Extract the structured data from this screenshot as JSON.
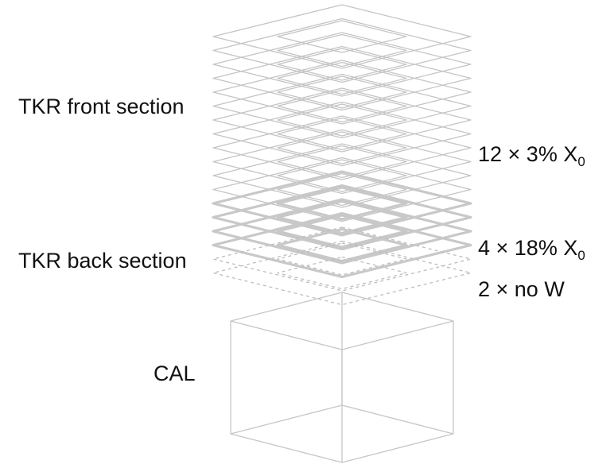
{
  "labels": {
    "tkr_front": "TKR front section",
    "tkr_back": "TKR back section",
    "cal": "CAL",
    "front_layers": {
      "text": "12 × 3% X",
      "sub": "0"
    },
    "back_layers": {
      "text": "4 × 18% X",
      "sub": "0"
    },
    "now_layers": "2 × no W"
  },
  "stack": {
    "front_layer_count": 12,
    "back_layer_count": 4,
    "no_w_layer_count": 2
  },
  "colors": {
    "thin_line": "#c4c4c4",
    "thick_line": "#c8c8c8",
    "dashed_line": "#bdbdbd",
    "cal_line": "#c6c6c6",
    "text": "#111111"
  }
}
